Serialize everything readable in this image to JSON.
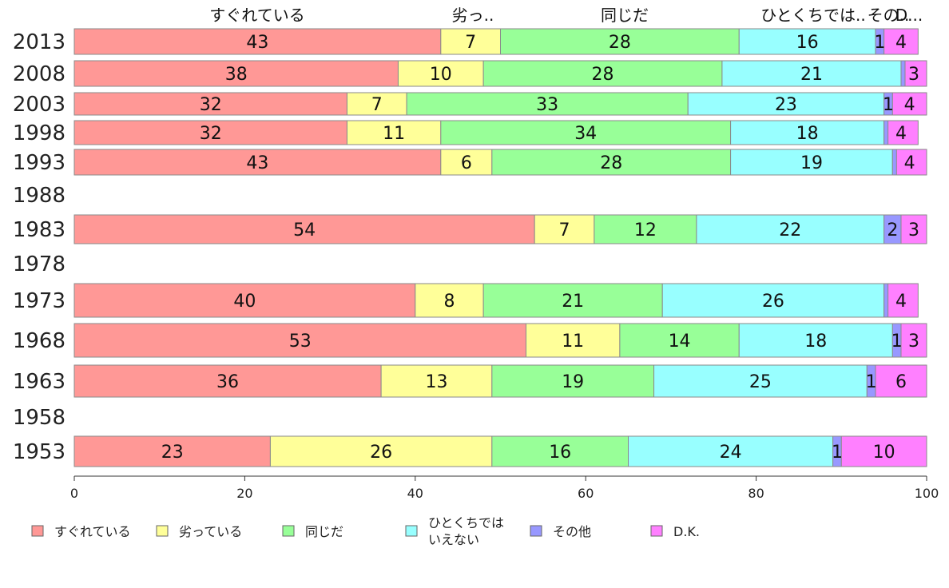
{
  "chart_data": {
    "type": "bar",
    "orientation": "horizontal",
    "stacked": true,
    "categories": [
      "2013",
      "2008",
      "2003",
      "1998",
      "1993",
      "1988",
      "1983",
      "1978",
      "1973",
      "1968",
      "1963",
      "1958",
      "1953"
    ],
    "series": [
      {
        "name": "すぐれている",
        "color": "#ff9896",
        "values": [
          43,
          38,
          32,
          32,
          43,
          null,
          54,
          null,
          40,
          53,
          36,
          null,
          23
        ]
      },
      {
        "name": "劣っている",
        "color": "#ffff99",
        "values": [
          7,
          10,
          7,
          11,
          6,
          null,
          7,
          null,
          8,
          11,
          13,
          null,
          26
        ]
      },
      {
        "name": "同じだ",
        "color": "#98ff98",
        "values": [
          28,
          28,
          33,
          34,
          28,
          null,
          12,
          null,
          21,
          14,
          19,
          null,
          16
        ]
      },
      {
        "name": "ひとくちではいえない",
        "color": "#98ffff",
        "values": [
          16,
          21,
          23,
          18,
          19,
          null,
          22,
          null,
          26,
          18,
          25,
          null,
          24
        ]
      },
      {
        "name": "その他",
        "color": "#9898ff",
        "values": [
          1,
          0,
          1,
          0,
          0,
          null,
          2,
          null,
          0,
          1,
          1,
          null,
          1
        ]
      },
      {
        "name": "D.K.",
        "color": "#ff80ff",
        "values": [
          4,
          3,
          4,
          4,
          4,
          null,
          3,
          null,
          4,
          3,
          6,
          null,
          10
        ]
      }
    ],
    "top_labels": [
      "すぐれている",
      "劣っ..",
      "同じだ",
      "ひとくちでは..",
      "その..",
      "D..."
    ],
    "xlim": [
      0,
      100
    ],
    "x_ticks": [
      "0",
      "20",
      "40",
      "60",
      "80",
      "100"
    ],
    "legend": {
      "placement": "bottom",
      "items": [
        {
          "label": "すぐれている",
          "color": "#ff9896"
        },
        {
          "label": "劣っている",
          "color": "#ffff99"
        },
        {
          "label": "同じだ",
          "color": "#98ff98"
        },
        {
          "label_line1": "ひとくちでは",
          "label_line2": "いえない",
          "color": "#98ffff"
        },
        {
          "label": "その他",
          "color": "#9898ff"
        },
        {
          "label": "D.K.",
          "color": "#ff80ff"
        }
      ]
    },
    "grid": false
  }
}
